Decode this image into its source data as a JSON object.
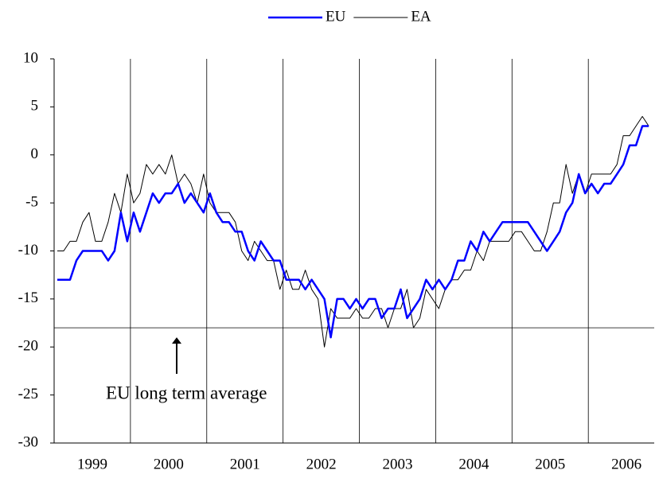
{
  "chart_data": {
    "type": "line",
    "categories": [
      null,
      null,
      null,
      null,
      null,
      null,
      "1999",
      null,
      null,
      null,
      null,
      null,
      null,
      null,
      null,
      null,
      null,
      null,
      "2000",
      null,
      null,
      null,
      null,
      null,
      null,
      null,
      null,
      null,
      null,
      null,
      "2001",
      null,
      null,
      null,
      null,
      null,
      null,
      null,
      null,
      null,
      null,
      null,
      "2002",
      null,
      null,
      null,
      null,
      null,
      null,
      null,
      null,
      null,
      null,
      null,
      "2003",
      null,
      null,
      null,
      null,
      null,
      null,
      null,
      null,
      null,
      null,
      null,
      "2004",
      null,
      null,
      null,
      null,
      null,
      null,
      null,
      null,
      null,
      null,
      null,
      "2005",
      null,
      null,
      null,
      null,
      null,
      null,
      null,
      null,
      null,
      null,
      null,
      "2006",
      null,
      null,
      null
    ],
    "series": [
      {
        "name": "EU",
        "color": "#0000ff",
        "width": 2.5,
        "values": [
          -13,
          -13,
          -13,
          -11,
          -10,
          -10,
          -10,
          -10,
          -11,
          -10,
          -6,
          -9,
          -6,
          -8,
          -6,
          -4,
          -5,
          -4,
          -4,
          -3,
          -5,
          -4,
          -5,
          -6,
          -4,
          -6,
          -7,
          -7,
          -8,
          -8,
          -10,
          -11,
          -9,
          -10,
          -11,
          -11,
          -13,
          -13,
          -13,
          -14,
          -13,
          -14,
          -15,
          -19,
          -15,
          -15,
          -16,
          -15,
          -16,
          -15,
          -15,
          -17,
          -16,
          -16,
          -14,
          -17,
          -16,
          -15,
          -13,
          -14,
          -13,
          -14,
          -13,
          -11,
          -11,
          -9,
          -10,
          -8,
          -9,
          -8,
          -7,
          -7,
          -7,
          -7,
          -7,
          -8,
          -9,
          -10,
          -9,
          -8,
          -6,
          -5,
          -2,
          -4,
          -3,
          -4,
          -3,
          -3,
          -2,
          -1,
          1,
          1,
          3,
          3
        ]
      },
      {
        "name": "EA",
        "color": "#000000",
        "width": 1,
        "values": [
          -10,
          -10,
          -9,
          -9,
          -7,
          -6,
          -9,
          -9,
          -7,
          -4,
          -6,
          -2,
          -5,
          -4,
          -1,
          -2,
          -1,
          -2,
          0,
          -3,
          -2,
          -3,
          -5,
          -2,
          -5,
          -6,
          -6,
          -6,
          -7,
          -10,
          -11,
          -9,
          -10,
          -11,
          -11,
          -14,
          -12,
          -14,
          -14,
          -12,
          -14,
          -15,
          -20,
          -16,
          -17,
          -17,
          -17,
          -16,
          -17,
          -17,
          -16,
          -16,
          -18,
          -16,
          -16,
          -14,
          -18,
          -17,
          -14,
          -15,
          -16,
          -14,
          -13,
          -13,
          -12,
          -12,
          -10,
          -11,
          -9,
          -9,
          -9,
          -9,
          -8,
          -8,
          -9,
          -10,
          -10,
          -8,
          -5,
          -5,
          -1,
          -4,
          -2,
          -4,
          -2,
          -2,
          -2,
          -2,
          -1,
          2,
          2,
          3,
          4,
          3
        ]
      }
    ],
    "ylim": [
      -30,
      10
    ],
    "yticks": [
      -30,
      -25,
      -20,
      -15,
      -10,
      -5,
      0,
      5,
      10
    ],
    "reference_line": {
      "value": -18,
      "label": "EU long term average"
    },
    "legend": "top"
  }
}
